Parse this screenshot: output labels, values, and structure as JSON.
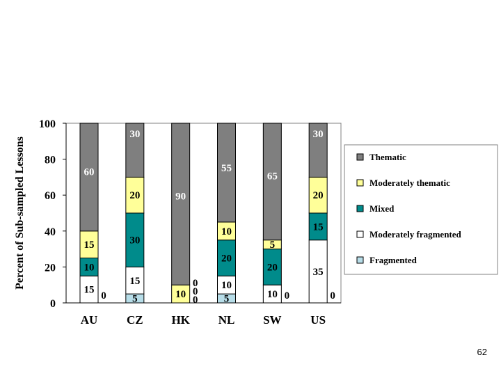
{
  "page_number": "62",
  "chart_data": {
    "type": "bar",
    "stacked": true,
    "categories": [
      "AU",
      "CZ",
      "HK",
      "NL",
      "SW",
      "US"
    ],
    "ylabel": "Percent of Sub-sampled Lessons",
    "ylim": [
      0,
      100
    ],
    "yticks": [
      0,
      20,
      40,
      60,
      80,
      100
    ],
    "legend_position": "right",
    "series": [
      {
        "name": "Fragmented",
        "values": [
          0,
          5,
          0,
          5,
          0,
          0
        ],
        "color": "#b7dde8"
      },
      {
        "name": "Moderately fragmented",
        "values": [
          15,
          15,
          0,
          10,
          10,
          35
        ],
        "color": "#ffffff"
      },
      {
        "name": "Mixed",
        "values": [
          10,
          30,
          0,
          20,
          20,
          15
        ],
        "color": "#008b8b"
      },
      {
        "name": "Moderately thematic",
        "values": [
          15,
          20,
          10,
          10,
          5,
          20
        ],
        "color": "#ffff99"
      },
      {
        "name": "Thematic",
        "values": [
          60,
          30,
          90,
          55,
          65,
          30
        ],
        "color": "#7f7f7f"
      }
    ],
    "data_labels": [
      {
        "category": "AU",
        "labels": [
          "0",
          "15",
          "10",
          "15",
          "60"
        ]
      },
      {
        "category": "CZ",
        "labels": [
          "5",
          "15",
          "30",
          "20",
          "30"
        ]
      },
      {
        "category": "HK",
        "labels": [
          "0",
          "0",
          "0",
          "10",
          "90"
        ]
      },
      {
        "category": "NL",
        "labels": [
          "5",
          "10",
          "20",
          "10",
          "55"
        ]
      },
      {
        "category": "SW",
        "labels": [
          "0",
          "10",
          "20",
          "5",
          "65"
        ]
      },
      {
        "category": "US",
        "labels": [
          "0",
          "35",
          "15",
          "20",
          "30"
        ]
      }
    ]
  }
}
